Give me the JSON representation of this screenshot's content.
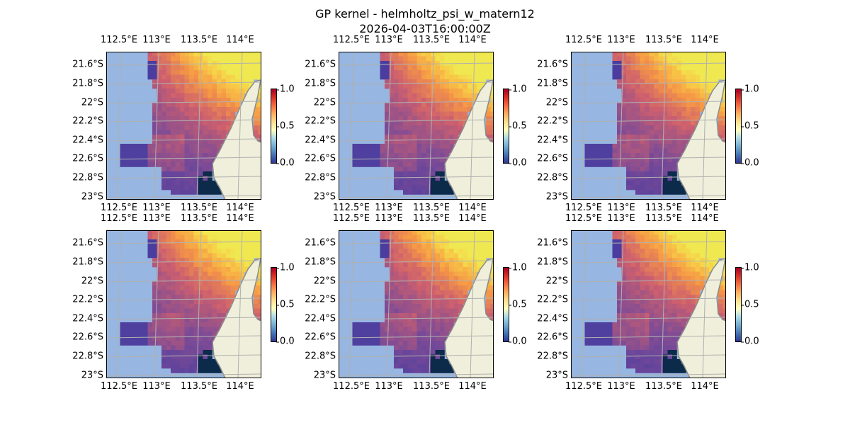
{
  "title": "GP kernel - helmholtz_psi_w_matern12",
  "subtitle": "2026-04-03T16:00:00Z",
  "lon_ticks": [
    "112.5°E",
    "113°E",
    "113.5°E",
    "114°E"
  ],
  "lat_ticks": [
    "21.6°S",
    "21.8°S",
    "22°S",
    "22.2°S",
    "22.4°S",
    "22.6°S",
    "22.8°S",
    "23°S"
  ],
  "colorbar_ticks": [
    "0.0",
    "0.5",
    "1.0"
  ],
  "colors": {
    "ocean": "#97b6e1",
    "land": "#efefdb",
    "coast": "#8a8a8a",
    "grid": "#b0b0b0"
  },
  "panels": [
    {
      "id": 1
    },
    {
      "id": 2
    },
    {
      "id": 3
    },
    {
      "id": 4
    },
    {
      "id": 5
    },
    {
      "id": 6
    }
  ]
}
